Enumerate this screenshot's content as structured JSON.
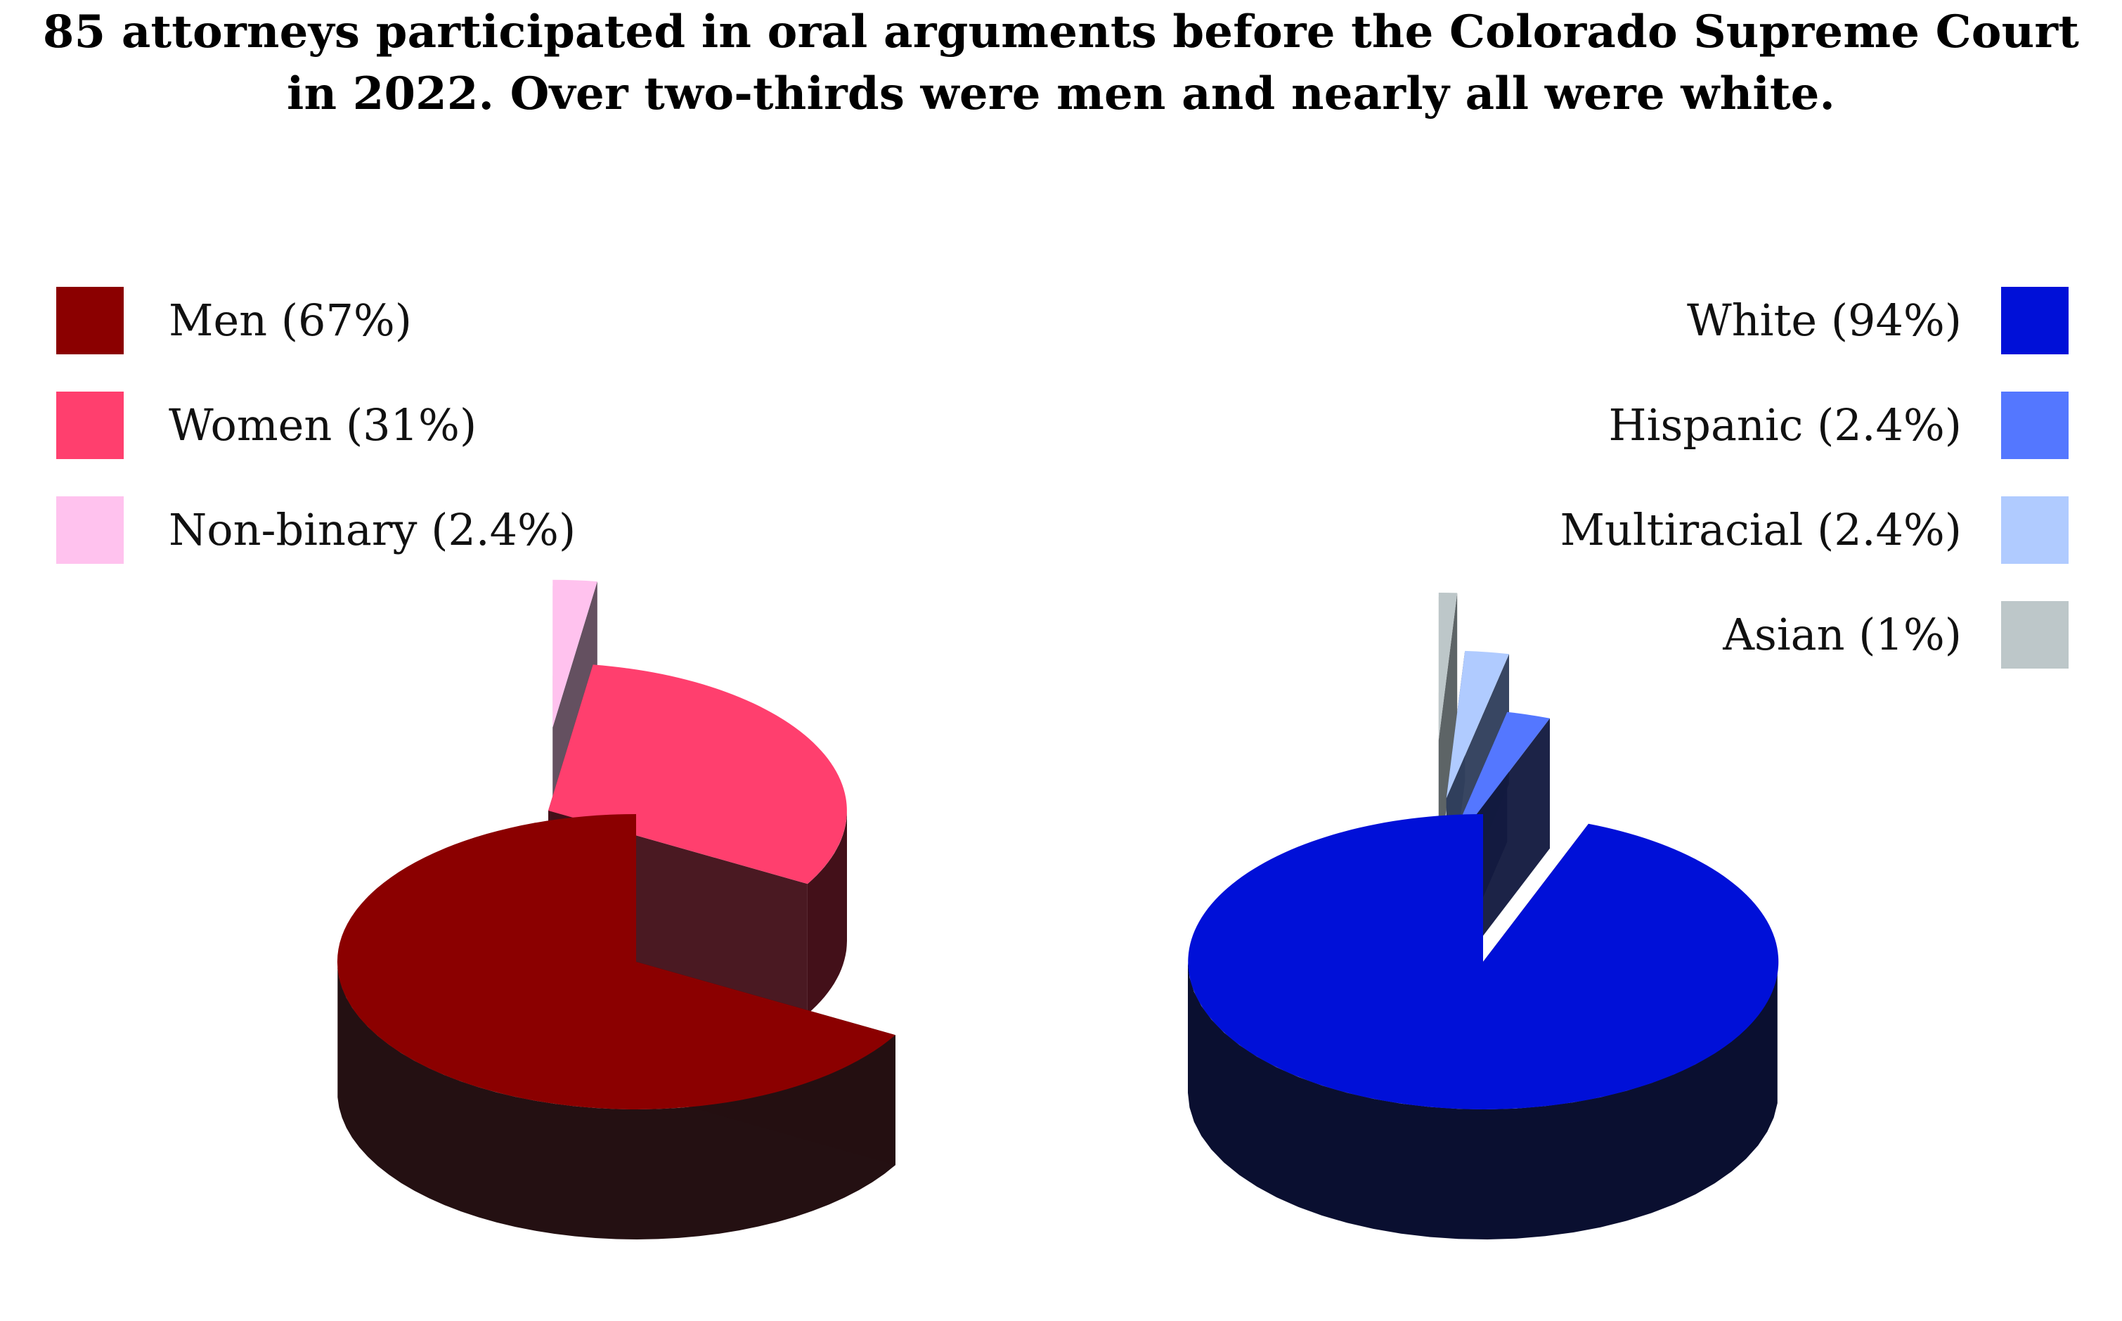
{
  "title_line1": "85 attorneys participated in oral arguments before the Colorado Supreme Court",
  "title_line2": "in 2022. Over two-thirds were men and nearly all were white.",
  "chart_data": [
    {
      "type": "pie",
      "style": "3d-exploded",
      "legend_position": "top-left",
      "slices": [
        {
          "label": "Men (67%)",
          "value": 67,
          "color": "#8B0000",
          "side_color": "#241012",
          "exploded": false
        },
        {
          "label": "Women (31%)",
          "value": 31,
          "color": "#FF3F6E",
          "side_color": "#431019",
          "exploded": true
        },
        {
          "label": "Non-binary (2.4%)",
          "value": 2.4,
          "color": "#FFC2EE",
          "side_color": "#5E4959",
          "exploded": true
        }
      ]
    },
    {
      "type": "pie",
      "style": "3d-exploded",
      "legend_position": "top-right",
      "slices": [
        {
          "label": "White (94%)",
          "value": 94,
          "color": "#0010D8",
          "side_color": "#0A0F30",
          "exploded": false
        },
        {
          "label": "Hispanic (2.4%)",
          "value": 2.4,
          "color": "#5477FF",
          "side_color": "#131A40",
          "exploded": true
        },
        {
          "label": "Multiracial (2.4%)",
          "value": 2.4,
          "color": "#B0CBFF",
          "side_color": "#303E5C",
          "exploded": true
        },
        {
          "label": "Asian (1%)",
          "value": 1,
          "color": "#BDC7C9",
          "side_color": "#565E60",
          "exploded": true
        }
      ]
    }
  ]
}
